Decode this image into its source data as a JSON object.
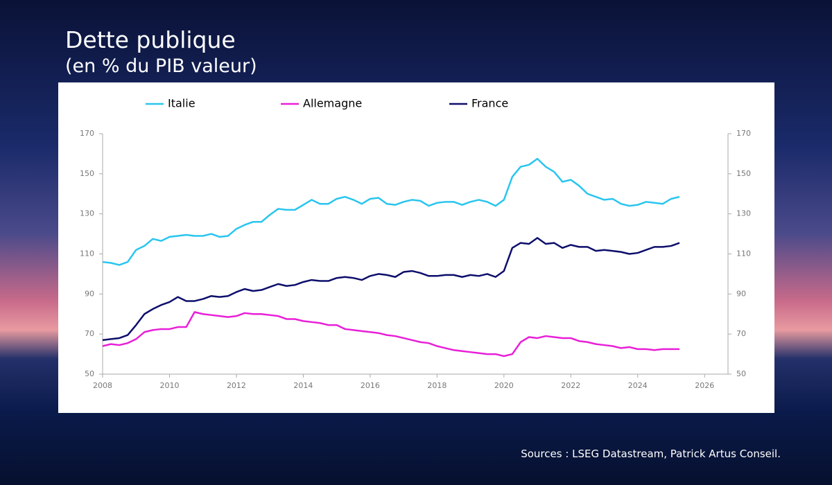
{
  "chart_data": {
    "type": "line",
    "title": "Dette publique",
    "subtitle": "(en % du PIB valeur)",
    "source": "Sources : LSEG Datastream, Patrick Artus Conseil.",
    "x": [
      2008,
      2008.25,
      2008.5,
      2008.75,
      2009,
      2009.25,
      2009.5,
      2009.75,
      2010,
      2010.25,
      2010.5,
      2010.75,
      2011,
      2011.25,
      2011.5,
      2011.75,
      2012,
      2012.25,
      2012.5,
      2012.75,
      2013,
      2013.25,
      2013.5,
      2013.75,
      2014,
      2014.25,
      2014.5,
      2014.75,
      2015,
      2015.25,
      2015.5,
      2015.75,
      2016,
      2016.25,
      2016.5,
      2016.75,
      2017,
      2017.25,
      2017.5,
      2017.75,
      2018,
      2018.25,
      2018.5,
      2018.75,
      2019,
      2019.25,
      2019.5,
      2019.75,
      2020,
      2020.25,
      2020.5,
      2020.75,
      2021,
      2021.25,
      2021.5,
      2021.75,
      2022,
      2022.25,
      2022.5,
      2022.75,
      2023,
      2023.25,
      2023.5,
      2023.75,
      2024,
      2024.25,
      2024.5,
      2024.75,
      2025,
      2025.25
    ],
    "series": [
      {
        "name": "Italie",
        "color": "#29c5ef",
        "values": [
          106,
          105.5,
          104.5,
          106,
          112,
          114,
          117.5,
          116.5,
          118.5,
          119,
          119.5,
          119,
          119,
          120,
          118.5,
          119,
          122.5,
          124.5,
          126,
          126,
          129.5,
          132.5,
          132,
          132,
          134.5,
          137,
          135,
          135,
          137.5,
          138.5,
          137,
          135,
          137.5,
          138,
          135,
          134.5,
          136,
          137,
          136.5,
          134,
          135.5,
          136,
          136,
          134.5,
          136,
          137,
          136,
          134,
          137,
          148.5,
          153.5,
          154.5,
          157.5,
          153.5,
          151,
          146,
          147,
          144,
          140,
          138.5,
          137,
          137.5,
          135,
          134,
          134.5,
          136,
          135.5,
          135,
          137.5,
          138.5
        ]
      },
      {
        "name": "Allemagne",
        "color": "#e81fd8",
        "values": [
          64,
          65,
          64.5,
          65.5,
          67.5,
          71,
          72,
          72.5,
          72.5,
          73.5,
          73.5,
          81,
          80,
          79.5,
          79,
          78.5,
          79,
          80.5,
          80,
          80,
          79.5,
          79,
          77.5,
          77.5,
          76.5,
          76,
          75.5,
          74.5,
          74.5,
          72.5,
          72,
          71.5,
          71,
          70.5,
          69.5,
          69,
          68,
          67,
          66,
          65.5,
          64,
          63,
          62,
          61.5,
          61,
          60.5,
          60,
          60,
          59,
          60,
          66,
          68.5,
          68,
          69,
          68.5,
          68,
          68,
          66.5,
          66,
          65,
          64.5,
          64,
          63,
          63.5,
          62.5,
          62.5,
          62,
          62.5,
          62.5,
          62.5
        ]
      },
      {
        "name": "France",
        "color": "#0d0e6b",
        "values": [
          67,
          67.5,
          68,
          69.5,
          74.5,
          80,
          82.5,
          84.5,
          86,
          88.5,
          86.5,
          86.5,
          87.5,
          89,
          88.5,
          89,
          91,
          92.5,
          91.5,
          92,
          93.5,
          95,
          94,
          94.5,
          96,
          97,
          96.5,
          96.5,
          98,
          98.5,
          98,
          97,
          99,
          100,
          99.5,
          98.5,
          101,
          101.5,
          100.5,
          99,
          99,
          99.5,
          99.5,
          98.5,
          99.5,
          99,
          100,
          98.5,
          101.5,
          113,
          115.5,
          115,
          118,
          115,
          115.5,
          113,
          114.5,
          113.5,
          113.5,
          111.5,
          112,
          111.5,
          111,
          110,
          110.5,
          112,
          113.5,
          113.5,
          114,
          115.5
        ]
      }
    ],
    "xlim": [
      2008,
      2026.7
    ],
    "xticks": [
      2008,
      2010,
      2012,
      2014,
      2016,
      2018,
      2020,
      2022,
      2024,
      2026
    ],
    "ylim": [
      50,
      170
    ],
    "yticks": [
      50,
      70,
      90,
      110,
      130,
      150,
      170
    ],
    "y2lim": [
      50,
      170
    ],
    "y2ticks": [
      50,
      70,
      90,
      110,
      130,
      150,
      170
    ],
    "grid": false
  }
}
